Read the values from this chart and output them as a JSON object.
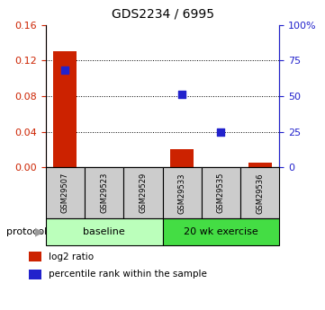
{
  "title": "GDS2234 / 6995",
  "samples": [
    "GSM29507",
    "GSM29523",
    "GSM29529",
    "GSM29533",
    "GSM29535",
    "GSM29536"
  ],
  "log2_ratio": [
    0.13,
    0.0,
    0.0,
    0.02,
    0.0,
    0.005
  ],
  "percentile_rank": [
    68.0,
    0.0,
    0.0,
    51.0,
    25.0,
    0.0
  ],
  "left_ylim": [
    0,
    0.16
  ],
  "right_ylim": [
    0,
    100
  ],
  "left_yticks": [
    0,
    0.04,
    0.08,
    0.12,
    0.16
  ],
  "right_yticks": [
    0,
    25,
    50,
    75,
    100
  ],
  "right_yticklabels": [
    "0",
    "25",
    "50",
    "75",
    "100%"
  ],
  "dotted_lines": [
    0.04,
    0.08,
    0.12
  ],
  "bar_color": "#cc2200",
  "dot_color": "#2222cc",
  "protocol_groups": [
    {
      "label": "baseline",
      "start": 0,
      "end": 3,
      "color": "#bbffbb"
    },
    {
      "label": "20 wk exercise",
      "start": 3,
      "end": 6,
      "color": "#44dd44"
    }
  ],
  "protocol_label": "protocol",
  "legend_items": [
    {
      "label": "log2 ratio",
      "color": "#cc2200"
    },
    {
      "label": "percentile rank within the sample",
      "color": "#2222cc"
    }
  ],
  "sample_box_color": "#cccccc",
  "bar_width": 0.6,
  "dot_size": 30
}
